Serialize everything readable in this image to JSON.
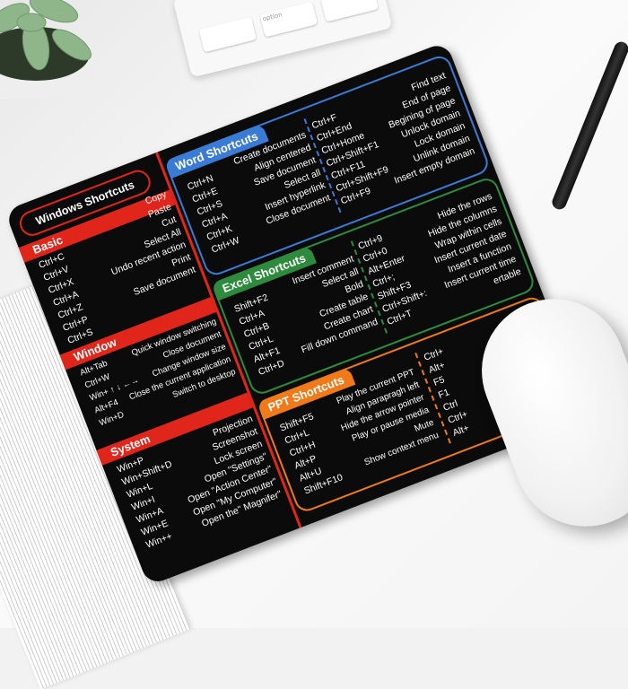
{
  "colors": {
    "pad": "#0b0b0b",
    "windows": "#e0261b",
    "word": "#3a7bd5",
    "excel": "#2e8b3e",
    "ppt": "#f07a1a"
  },
  "keyboard": {
    "key_label": "option"
  },
  "windows": {
    "title": "Windows Shortcuts",
    "basic": {
      "label": "Basic",
      "keys": [
        "Ctrl+C",
        "Ctrl+V",
        "Ctrl+X",
        "Ctrl+A",
        "Ctrl+Z",
        "Ctrl+P",
        "Ctrl+S"
      ],
      "actions": [
        "Copy",
        "Paste",
        "Cut",
        "Select All",
        "Undo recent action",
        "Print",
        "Save document"
      ]
    },
    "window": {
      "label": "Window",
      "keys": [
        "Alt+Tab",
        "Ctrl+W",
        "Win+ ↑ ↓ ←→",
        "Alt+F4",
        "Win+D"
      ],
      "actions": [
        "Quick window switching",
        "Close document",
        "Change window size",
        "Close the current application",
        "Switch to desktop"
      ]
    },
    "system": {
      "label": "System",
      "keys": [
        "Win+P",
        "Win+Shift+D",
        "Win+L",
        "Win+I",
        "Win+A",
        "Win+E",
        "Win++"
      ],
      "actions": [
        "Projection",
        "Screenshot",
        "Lock screen",
        "Open \"Settings\"",
        "Open \"Action Center\"",
        "Open \"My Computer\"",
        "Open the\" Magnifer\""
      ]
    }
  },
  "word": {
    "title": "Word Shortcuts",
    "left_keys": [
      "Ctrl+N",
      "Ctrl+E",
      "Ctrl+S",
      "Ctrl+A",
      "Ctrl+K",
      "Ctrl+W"
    ],
    "left_actions": [
      "Create documents",
      "Align centered",
      "Save document",
      "Select all",
      "Insert hyperlink",
      "Close document"
    ],
    "right_keys": [
      "Ctrl+F",
      "Ctrl+End",
      "Ctrl+Home",
      "Ctrl+Shift+F1",
      "Ctrl+F11",
      "Ctrl+Shift+F9",
      "Ctrl+F9"
    ],
    "right_actions": [
      "Find text",
      "End of page",
      "Begining of page",
      "Unlock domain",
      "Lock domain",
      "Unlink domain",
      "Insert empty domain"
    ]
  },
  "excel": {
    "title": "Excel Shortcuts",
    "left_keys": [
      "Shift+F2",
      "Ctrl+A",
      "Ctrl+B",
      "Ctrl+L",
      "Alt+F1",
      "Ctrl+D"
    ],
    "left_actions": [
      "Insert comment",
      "Select all",
      "Bold",
      "Create table",
      "Create chart",
      "Fill down command"
    ],
    "right_keys": [
      "Ctrl+9",
      "Ctrl+0",
      "Alt+Enter",
      "Ctrl+;",
      "Shift+F3",
      "Ctrl+Shift+:",
      "Ctrl+T"
    ],
    "right_actions": [
      "Hide the rows",
      "Hide the columns",
      "Wrap within cells",
      "Insert current date",
      "Insert a function",
      "Insert current time",
      "ertable"
    ]
  },
  "ppt": {
    "title": "PPT Shortcuts",
    "left_keys": [
      "Shift+F5",
      "Ctrl+L",
      "Ctrl+H",
      "Alt+P",
      "Alt+U",
      "Shift+F10"
    ],
    "left_actions": [
      "Play the current PPT",
      "Align parapragh left",
      "Hide the arrow pointer",
      "Play or pause media",
      "Mute",
      "Show context menu"
    ],
    "right_keys": [
      "Ctrl+",
      "Alt+",
      "F5",
      "F1",
      "Ctrl",
      "Ctrl+",
      "Alt+"
    ]
  }
}
